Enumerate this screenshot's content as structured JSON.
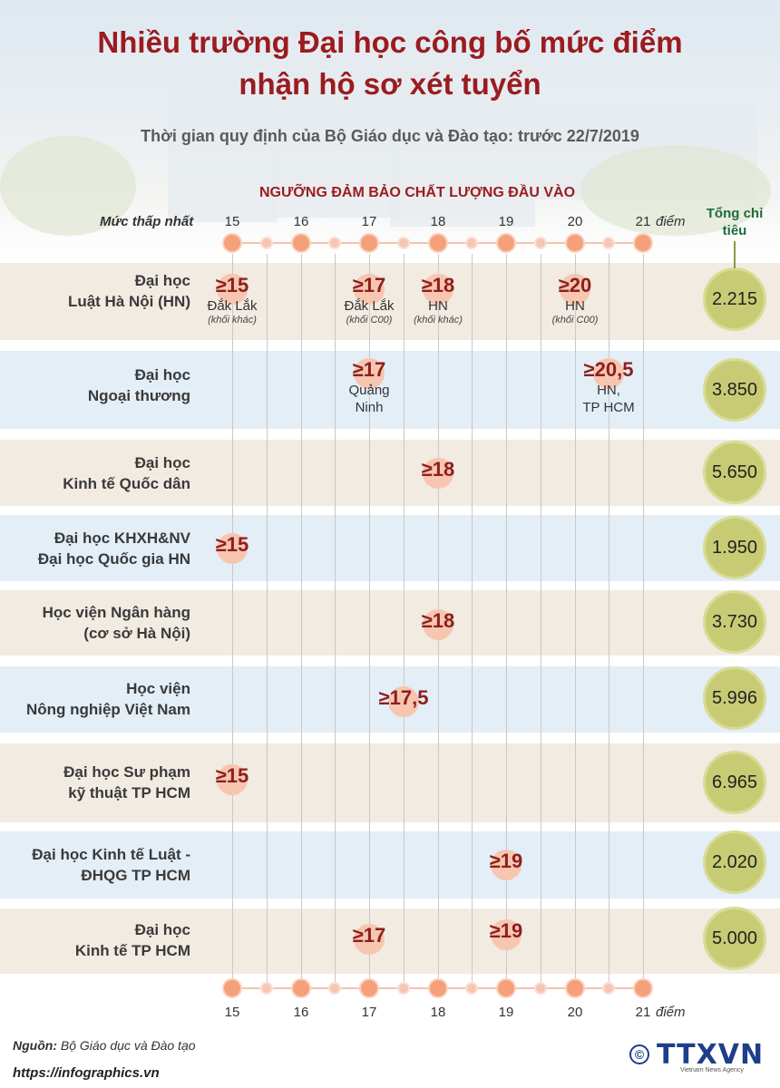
{
  "title_line1": "Nhiều trường Đại học công bố mức điểm",
  "title_line2": "nhận hộ sơ xét tuyển",
  "subtitle": "Thời gian quy định của Bộ Giáo dục và Đào tạo: trước 22/7/2019",
  "scale_heading": "NGƯỠNG ĐẢM BẢO CHẤT LƯỢNG ĐẦU VÀO",
  "axis_label": "Mức thấp nhất",
  "axis_unit": "điểm",
  "total_heading": "Tổng chỉ tiêu",
  "ticks": [
    "15",
    "16",
    "17",
    "18",
    "19",
    "20",
    "21"
  ],
  "schools": [
    {
      "name_line1": "Đại học",
      "name_line2": "Luật Hà Nội (HN)",
      "total": "2.215",
      "values": [
        {
          "label": "≥15",
          "score": 15,
          "note": [
            "Đắk Lắk"
          ],
          "block": "(khối khác)"
        },
        {
          "label": "≥17",
          "score": 17,
          "note": [
            "Đắk Lắk"
          ],
          "block": "(khối C00)"
        },
        {
          "label": "≥18",
          "score": 18,
          "note": [
            "HN"
          ],
          "block": "(khối khác)"
        },
        {
          "label": "≥20",
          "score": 20,
          "note": [
            "HN"
          ],
          "block": "(khối C00)"
        }
      ]
    },
    {
      "name_line1": "Đại học",
      "name_line2": "Ngoại thương",
      "total": "3.850",
      "values": [
        {
          "label": "≥17",
          "score": 17,
          "note": [
            "Quảng",
            "Ninh"
          ]
        },
        {
          "label": "≥20,5",
          "score": 20.5,
          "note": [
            "HN,",
            "TP HCM"
          ]
        }
      ]
    },
    {
      "name_line1": "Đại học",
      "name_line2": "Kinh tế Quốc dân",
      "total": "5.650",
      "values": [
        {
          "label": "≥18",
          "score": 18
        }
      ]
    },
    {
      "name_line1": "Đại học KHXH&NV",
      "name_line2": "Đại học Quốc gia HN",
      "total": "1.950",
      "values": [
        {
          "label": "≥15",
          "score": 15
        }
      ]
    },
    {
      "name_line1": "Học viện Ngân hàng",
      "name_line2": "(cơ sở Hà Nội)",
      "total": "3.730",
      "values": [
        {
          "label": "≥18",
          "score": 18
        }
      ]
    },
    {
      "name_line1": "Học viện",
      "name_line2": "Nông nghiệp Việt Nam",
      "total": "5.996",
      "values": [
        {
          "label": "≥17,5",
          "score": 17.5
        }
      ]
    },
    {
      "name_line1": "Đại học Sư phạm",
      "name_line2": "kỹ thuật TP HCM",
      "total": "6.965",
      "values": [
        {
          "label": "≥15",
          "score": 15
        }
      ]
    },
    {
      "name_line1": "Đại học Kinh tế Luật -",
      "name_line2": "ĐHQG TP HCM",
      "total": "2.020",
      "values": [
        {
          "label": "≥19",
          "score": 19
        }
      ]
    },
    {
      "name_line1": "Đại học",
      "name_line2": "Kinh tế TP HCM",
      "total": "5.000",
      "values": [
        {
          "label": "≥17",
          "score": 17
        },
        {
          "label": "≥19",
          "score": 19
        }
      ]
    }
  ],
  "source_label": "Nguồn:",
  "source_text": "Bộ Giáo dục và Đào tạo",
  "url": "https://infographics.vn",
  "logo_text": "TTXVN",
  "logo_sub": "Vietnam News Agency",
  "copyright_symbol": "©",
  "colors": {
    "title": "#9b1b1f",
    "row_beige": "#f1ebe2",
    "row_blue": "#e3eef7",
    "total_circle": "#c7cc74",
    "marker": "#f5a07a",
    "logo": "#1d3f8a"
  }
}
